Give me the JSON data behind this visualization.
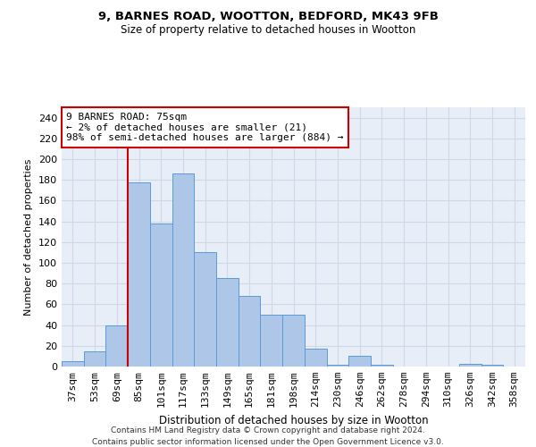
{
  "title1": "9, BARNES ROAD, WOOTTON, BEDFORD, MK43 9FB",
  "title2": "Size of property relative to detached houses in Wootton",
  "xlabel": "Distribution of detached houses by size in Wootton",
  "ylabel": "Number of detached properties",
  "bins": [
    "37sqm",
    "53sqm",
    "69sqm",
    "85sqm",
    "101sqm",
    "117sqm",
    "133sqm",
    "149sqm",
    "165sqm",
    "181sqm",
    "198sqm",
    "214sqm",
    "230sqm",
    "246sqm",
    "262sqm",
    "278sqm",
    "294sqm",
    "310sqm",
    "326sqm",
    "342sqm",
    "358sqm"
  ],
  "values": [
    5,
    15,
    40,
    178,
    138,
    186,
    110,
    85,
    68,
    50,
    50,
    17,
    2,
    10,
    2,
    0,
    0,
    0,
    3,
    2,
    0
  ],
  "bar_color": "#aec6e8",
  "bar_edge_color": "#5b9bd5",
  "vline_x_idx": 2,
  "vline_color": "#cc0000",
  "annotation_text": "9 BARNES ROAD: 75sqm\n← 2% of detached houses are smaller (21)\n98% of semi-detached houses are larger (884) →",
  "annotation_box_color": "#ffffff",
  "annotation_box_edge": "#cc0000",
  "ylim": [
    0,
    250
  ],
  "yticks": [
    0,
    20,
    40,
    60,
    80,
    100,
    120,
    140,
    160,
    180,
    200,
    220,
    240
  ],
  "footer1": "Contains HM Land Registry data © Crown copyright and database right 2024.",
  "footer2": "Contains public sector information licensed under the Open Government Licence v3.0.",
  "grid_color": "#d0d8e8",
  "bg_color": "#e8eef8"
}
